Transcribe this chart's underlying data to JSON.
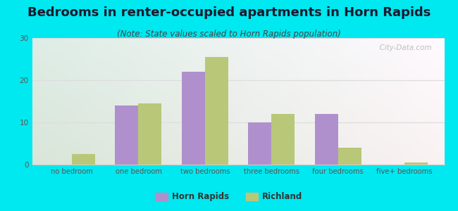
{
  "title": "Bedrooms in renter-occupied apartments in Horn Rapids",
  "subtitle": "(Note: State values scaled to Horn Rapids population)",
  "categories": [
    "no bedroom",
    "one bedroom",
    "two bedrooms",
    "three bedrooms",
    "four bedrooms",
    "five+ bedrooms"
  ],
  "horn_rapids": [
    0,
    14,
    22,
    10,
    12,
    0
  ],
  "richland": [
    2.5,
    14.5,
    25.5,
    12,
    4,
    0.5
  ],
  "horn_rapids_color": "#b090cc",
  "richland_color": "#b8c878",
  "bar_width": 0.35,
  "ylim": [
    0,
    30
  ],
  "yticks": [
    0,
    10,
    20,
    30
  ],
  "background_outer": "#00e8f0",
  "title_fontsize": 13,
  "subtitle_fontsize": 8.5,
  "watermark": "  City-Data.com",
  "legend_horn_rapids": "Horn Rapids",
  "legend_richland": "Richland",
  "grid_color": "#dddddd",
  "tick_color": "#555555",
  "axis_label_color": "#555555"
}
